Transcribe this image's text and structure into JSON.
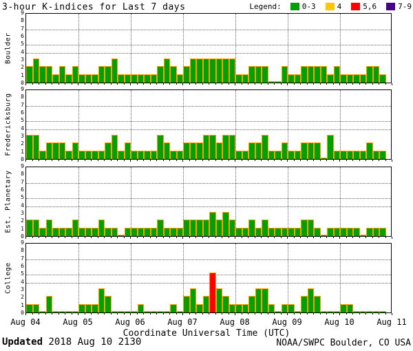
{
  "title": "3-hour K-indices for Last 7 days",
  "legend": {
    "label": "Legend:",
    "items": [
      {
        "label": "0-3",
        "color": "#00A000"
      },
      {
        "label": "4",
        "color": "#FFC800"
      },
      {
        "label": "5,6",
        "color": "#FF0000"
      },
      {
        "label": "7-9",
        "color": "#46008C"
      }
    ]
  },
  "colors": {
    "green": "#00A000",
    "yellow": "#FFC800",
    "red": "#FF0000",
    "purple": "#46008C",
    "bar_outline": "#FFA000"
  },
  "xlabel": "Coordinate Universal Time (UTC)",
  "x_ticks": [
    "Aug 04",
    "Aug 05",
    "Aug 06",
    "Aug 07",
    "Aug 08",
    "Aug 09",
    "Aug 10",
    "Aug 11"
  ],
  "footer": {
    "updated_label": "Updated",
    "updated_value": "2018 Aug 10 2130",
    "credit": "NOAA/SWPC Boulder, CO USA"
  },
  "chart_data": {
    "type": "bar",
    "title": "3-hour K-indices for Last 7 days",
    "xlabel": "Coordinate Universal Time (UTC)",
    "ylim": [
      0,
      9
    ],
    "y_ticks": [
      0,
      1,
      2,
      3,
      4,
      5,
      6,
      7,
      8,
      9
    ],
    "grid_y": [
      4,
      5,
      7
    ],
    "grid": "dotted horizontal lines at K=4,5,7; dotted vertical lines at day boundaries",
    "legend_position": "top-right",
    "bars_per_day": 8,
    "interval_hours": 3,
    "color_rule": "K 0-3 green, K 4 yellow, K 5-6 red, K 7-9 purple",
    "days": [
      "Aug 04",
      "Aug 05",
      "Aug 06",
      "Aug 07",
      "Aug 08",
      "Aug 09",
      "Aug 10"
    ],
    "panels": [
      {
        "station": "Boulder",
        "values": [
          2,
          3,
          2,
          2,
          1,
          2,
          1,
          2,
          1,
          1,
          1,
          2,
          2,
          3,
          1,
          1,
          1,
          1,
          1,
          1,
          2,
          3,
          2,
          1,
          2,
          3,
          3,
          3,
          3,
          3,
          3,
          3,
          1,
          1,
          2,
          2,
          2,
          0,
          0,
          2,
          1,
          1,
          2,
          2,
          2,
          2,
          1,
          2,
          1,
          1,
          1,
          1,
          2,
          2,
          1,
          null
        ]
      },
      {
        "station": "Fredericksburg",
        "values": [
          3,
          3,
          1,
          2,
          2,
          2,
          1,
          2,
          1,
          1,
          1,
          1,
          2,
          3,
          1,
          2,
          1,
          1,
          1,
          1,
          3,
          2,
          1,
          1,
          2,
          2,
          2,
          3,
          3,
          2,
          3,
          3,
          1,
          1,
          2,
          2,
          3,
          1,
          1,
          2,
          1,
          1,
          2,
          2,
          2,
          0,
          3,
          1,
          1,
          1,
          1,
          1,
          2,
          1,
          1,
          null
        ]
      },
      {
        "station": "Est. Planetary",
        "values": [
          2,
          2,
          1,
          2,
          1,
          1,
          1,
          2,
          1,
          1,
          1,
          2,
          1,
          1,
          0,
          1,
          1,
          1,
          1,
          1,
          2,
          1,
          1,
          1,
          2,
          2,
          2,
          2,
          3,
          2,
          3,
          2,
          1,
          1,
          2,
          1,
          2,
          1,
          1,
          1,
          1,
          1,
          2,
          2,
          1,
          0,
          1,
          1,
          1,
          1,
          1,
          0,
          1,
          1,
          1,
          null
        ]
      },
      {
        "station": "College",
        "values": [
          1,
          1,
          0,
          2,
          0,
          0,
          0,
          0,
          1,
          1,
          1,
          3,
          2,
          0,
          0,
          0,
          0,
          1,
          0,
          0,
          0,
          0,
          1,
          0,
          2,
          3,
          1,
          2,
          5,
          3,
          2,
          1,
          1,
          1,
          2,
          3,
          3,
          1,
          0,
          1,
          1,
          0,
          2,
          3,
          2,
          0,
          0,
          0,
          1,
          1,
          0,
          0,
          0,
          0,
          0,
          null
        ]
      }
    ]
  }
}
